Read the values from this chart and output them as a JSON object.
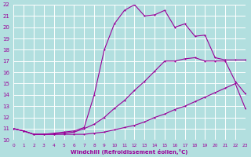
{
  "xlabel": "Windchill (Refroidissement éolien,°C)",
  "bg_color": "#b2dfdf",
  "grid_color": "#ffffff",
  "line_color": "#990099",
  "xlim": [
    0,
    23
  ],
  "ylim": [
    10,
    22
  ],
  "xticks": [
    0,
    1,
    2,
    3,
    4,
    5,
    6,
    7,
    8,
    9,
    10,
    11,
    12,
    13,
    14,
    15,
    16,
    17,
    18,
    19,
    20,
    21,
    22,
    23
  ],
  "yticks": [
    10,
    11,
    12,
    13,
    14,
    15,
    16,
    17,
    18,
    19,
    20,
    21,
    22
  ],
  "line1_x": [
    0,
    1,
    2,
    3,
    4,
    5,
    6,
    7,
    8,
    9,
    10,
    11,
    12,
    13,
    14,
    15,
    16,
    17,
    18,
    19,
    20,
    21,
    22,
    23
  ],
  "line1_y": [
    11.0,
    10.8,
    10.5,
    10.5,
    10.5,
    10.5,
    10.5,
    10.5,
    10.6,
    10.7,
    10.9,
    11.1,
    11.3,
    11.6,
    12.0,
    12.3,
    12.7,
    13.0,
    13.4,
    13.8,
    14.2,
    14.6,
    15.0,
    12.8
  ],
  "line2_x": [
    0,
    1,
    2,
    3,
    4,
    5,
    6,
    7,
    8,
    9,
    10,
    11,
    12,
    13,
    14,
    15,
    16,
    17,
    18,
    19,
    20,
    21,
    22,
    23
  ],
  "line2_y": [
    11.0,
    10.8,
    10.5,
    10.5,
    10.5,
    10.6,
    10.7,
    11.0,
    11.4,
    12.0,
    12.8,
    13.5,
    14.4,
    15.2,
    16.1,
    17.0,
    17.0,
    17.2,
    17.3,
    17.0,
    17.0,
    17.0,
    15.2,
    14.1
  ],
  "line3_x": [
    0,
    1,
    2,
    3,
    4,
    5,
    6,
    7,
    8,
    9,
    10,
    11,
    12,
    13,
    14,
    15,
    16,
    17,
    18,
    19,
    20,
    21,
    22,
    23
  ],
  "line3_y": [
    11.0,
    10.8,
    10.5,
    10.5,
    10.6,
    10.7,
    10.8,
    11.1,
    14.0,
    18.0,
    20.3,
    21.5,
    22.0,
    21.0,
    21.1,
    21.5,
    20.0,
    20.3,
    19.2,
    19.3,
    17.3,
    17.1,
    17.1,
    17.1
  ]
}
